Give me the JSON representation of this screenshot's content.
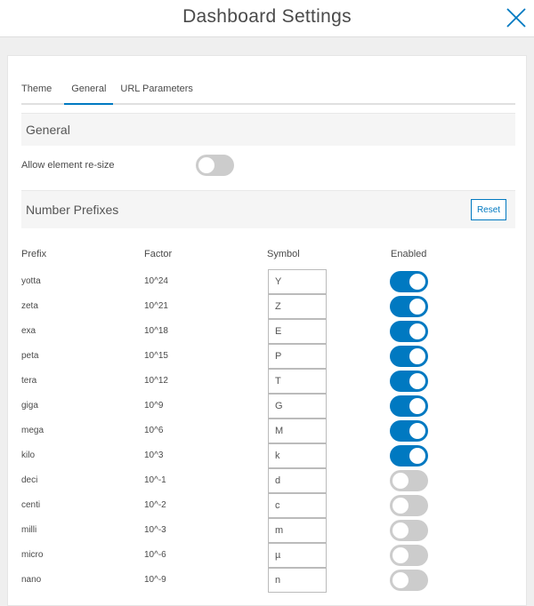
{
  "header": {
    "title": "Dashboard Settings"
  },
  "tabs": [
    "Theme",
    "General",
    "URL Parameters"
  ],
  "general": {
    "title": "General",
    "resize_label": "Allow element re-size",
    "resize_enabled": false
  },
  "prefixes": {
    "title": "Number Prefixes",
    "reset_label": "Reset",
    "columns": [
      "Prefix",
      "Factor",
      "Symbol",
      "Enabled"
    ],
    "rows": [
      {
        "prefix": "yotta",
        "factor": "10^24",
        "symbol": "Y",
        "enabled": true
      },
      {
        "prefix": "zeta",
        "factor": "10^21",
        "symbol": "Z",
        "enabled": true
      },
      {
        "prefix": "exa",
        "factor": "10^18",
        "symbol": "E",
        "enabled": true
      },
      {
        "prefix": "peta",
        "factor": "10^15",
        "symbol": "P",
        "enabled": true
      },
      {
        "prefix": "tera",
        "factor": "10^12",
        "symbol": "T",
        "enabled": true
      },
      {
        "prefix": "giga",
        "factor": "10^9",
        "symbol": "G",
        "enabled": true
      },
      {
        "prefix": "mega",
        "factor": "10^6",
        "symbol": "M",
        "enabled": true
      },
      {
        "prefix": "kilo",
        "factor": "10^3",
        "symbol": "k",
        "enabled": true
      },
      {
        "prefix": "deci",
        "factor": "10^-1",
        "symbol": "d",
        "enabled": false
      },
      {
        "prefix": "centi",
        "factor": "10^-2",
        "symbol": "c",
        "enabled": false
      },
      {
        "prefix": "milli",
        "factor": "10^-3",
        "symbol": "m",
        "enabled": false
      },
      {
        "prefix": "micro",
        "factor": "10^-6",
        "symbol": "µ",
        "enabled": false
      },
      {
        "prefix": "nano",
        "factor": "10^-9",
        "symbol": "n",
        "enabled": false
      }
    ]
  },
  "colors": {
    "accent": "#0079c1"
  }
}
